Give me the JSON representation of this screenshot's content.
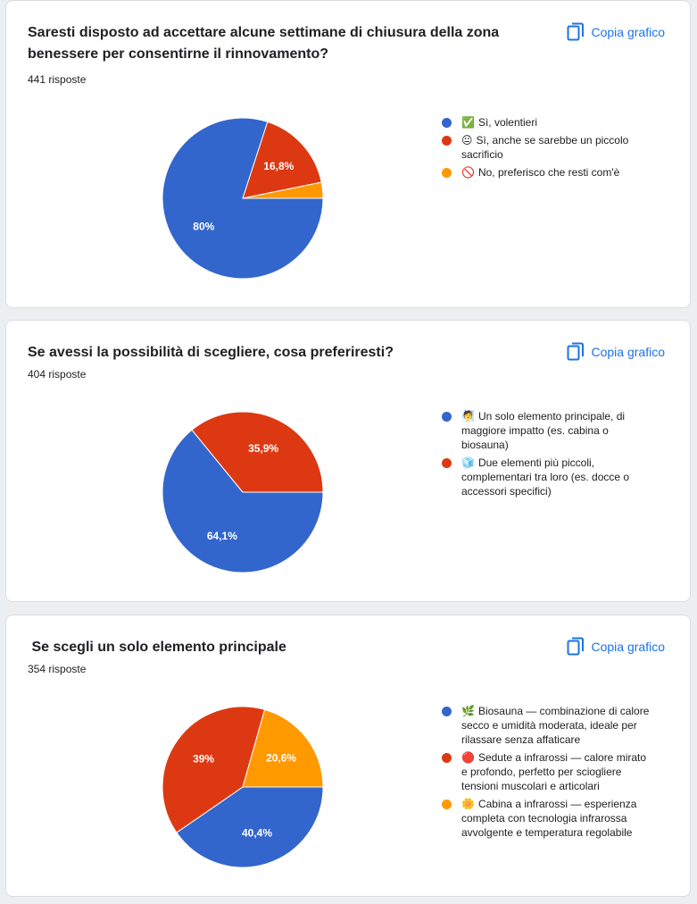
{
  "copy_label": "Copia grafico",
  "colors": {
    "blue": "#3366cc",
    "red": "#dc3912",
    "orange": "#ff9900",
    "accent": "#1a73e8"
  },
  "cards": [
    {
      "title": "Saresti disposto ad accettare alcune settimane di chiusura della zona benessere per consentirne il rinnovamento?",
      "responses": "441 risposte",
      "legend": [
        {
          "emoji": "✅",
          "label": "Sì, volentieri"
        },
        {
          "emoji": "😐",
          "label": "Sì, anche se sarebbe un piccolo sacrificio"
        },
        {
          "emoji": "🚫",
          "label": "No, preferisco che resti com'è"
        }
      ]
    },
    {
      "title": "Se avessi la possibilità di scegliere, cosa preferiresti?",
      "responses": "404 risposte",
      "legend": [
        {
          "emoji": "🧖",
          "label": "Un solo elemento principale, di maggiore impatto (es. cabina o biosauna)"
        },
        {
          "emoji": "🧊",
          "label": "Due elementi più piccoli, complementari tra loro (es. docce o accessori specifici)"
        }
      ]
    },
    {
      "title": "Se scegli un solo elemento principale",
      "responses": "354 risposte",
      "legend": [
        {
          "emoji": "🌿",
          "label": "Biosauna — combinazione di calore secco e umidità moderata, ideale per rilassare senza affaticare"
        },
        {
          "emoji": "🔴",
          "label": "Sedute a infrarossi — calore mirato e profondo, perfetto per sciogliere tensioni muscolari e articolari"
        },
        {
          "emoji": "🌼",
          "label": "Cabina a infrarossi — esperienza completa con tecnologia infrarossa avvolgente e temperatura regolabile"
        }
      ]
    }
  ],
  "chart_data": [
    {
      "type": "pie",
      "categories": [
        "✅ Sì, volentieri",
        "😐 Sì, anche se sarebbe un piccolo sacrificio",
        "🚫 No, preferisco che resti com'è"
      ],
      "values": [
        80,
        16.8,
        3.2
      ],
      "labels": [
        "80%",
        "16,8%",
        ""
      ],
      "colors": [
        "#3366cc",
        "#dc3912",
        "#ff9900"
      ],
      "legend": "right"
    },
    {
      "type": "pie",
      "categories": [
        "🧖 Un solo elemento principale, di maggiore impatto (es. cabina o biosauna)",
        "🧊 Due elementi più piccoli, complementari tra loro (es. docce o accessori specifici)"
      ],
      "values": [
        64.1,
        35.9
      ],
      "labels": [
        "64,1%",
        "35,9%"
      ],
      "colors": [
        "#3366cc",
        "#dc3912"
      ],
      "legend": "right"
    },
    {
      "type": "pie",
      "categories": [
        "🌿 Biosauna — combinazione di calore secco e umidità moderata, ideale per rilassare senza affaticare",
        "🔴 Sedute a infrarossi — calore mirato e profondo, perfetto per sciogliere tensioni muscolari e articolari",
        "🌼 Cabina a infrarossi — esperienza completa con tecnologia infrarossa avvolgente e temperatura regolabile"
      ],
      "values": [
        40.4,
        39,
        20.6
      ],
      "labels": [
        "40,4%",
        "39%",
        "20,6%"
      ],
      "colors": [
        "#3366cc",
        "#dc3912",
        "#ff9900"
      ],
      "legend": "right"
    }
  ]
}
